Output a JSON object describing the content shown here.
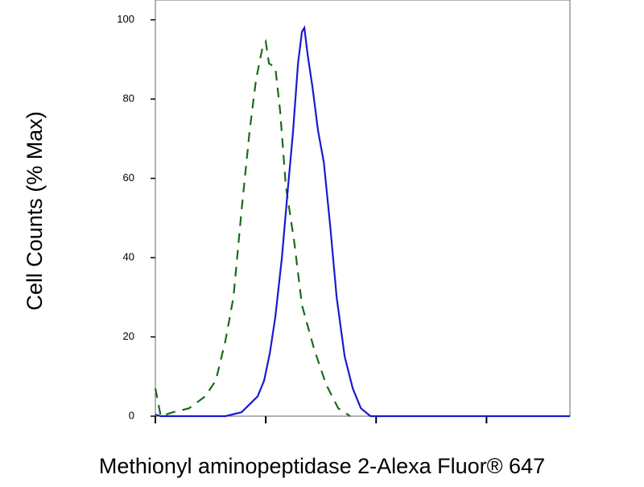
{
  "chart_data": {
    "type": "line",
    "x_label": "Methionyl aminopeptidase 2-Alexa Fluor® 647",
    "y_label": "Cell Counts (% Max)",
    "xscale": "log",
    "xlim": [
      1,
      5700
    ],
    "xticks": [
      1,
      10,
      100,
      1000
    ],
    "ylim": [
      0,
      105
    ],
    "yticks": [
      0,
      20,
      40,
      60,
      80,
      100
    ],
    "series": [
      {
        "color": "#1a6b1a",
        "dash": true,
        "x": [
          1,
          1.12,
          1.45,
          2.02,
          2.83,
          3.53,
          4.31,
          5.1,
          6.04,
          7.14,
          8.17,
          9.34,
          10,
          10.7,
          12.2,
          13.5,
          15.2,
          18.1,
          21.3,
          27.4,
          35.2,
          45.4,
          58.2
        ],
        "values": [
          7,
          0,
          1,
          2,
          5,
          9,
          19,
          30,
          52,
          72,
          85,
          93,
          94.5,
          89,
          88,
          77,
          58,
          44,
          28,
          17,
          8,
          2,
          0
        ]
      },
      {
        "color": "#1a1acc",
        "dash": false,
        "x": [
          1,
          1.12,
          2.61,
          4.31,
          6.04,
          7.14,
          8.45,
          9.67,
          10.9,
          12.2,
          14,
          15.7,
          17.7,
          19.6,
          21.3,
          22.4,
          24,
          26.5,
          29.8,
          33.6,
          38.4,
          43.9,
          51.9,
          61.4,
          72.7,
          88.9,
          5700
        ],
        "values": [
          0.4,
          0,
          0,
          0,
          1,
          3,
          5,
          9,
          16,
          25,
          40,
          56,
          72,
          89,
          97,
          98,
          91,
          83,
          72,
          64,
          48,
          30,
          15,
          7,
          2,
          0,
          0
        ]
      }
    ]
  }
}
